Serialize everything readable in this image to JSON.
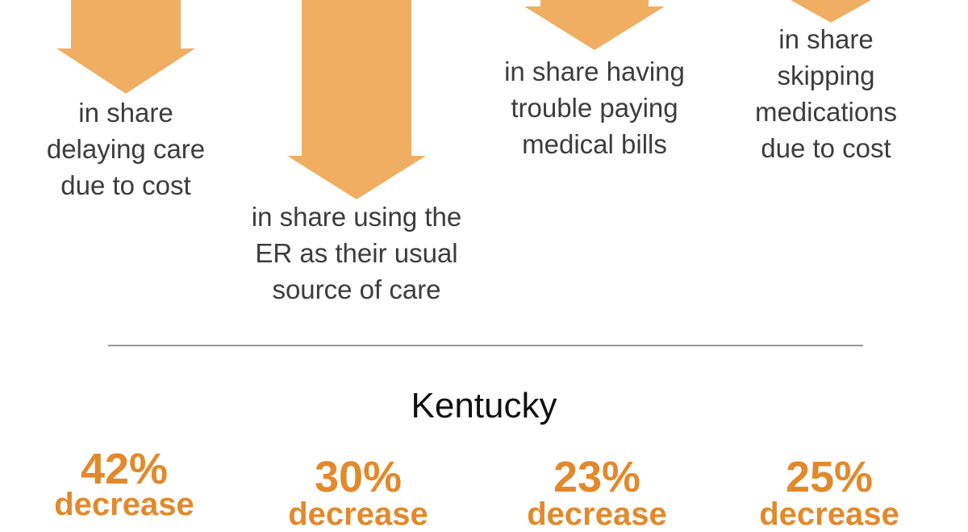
{
  "colors": {
    "arrow": "#f0ae62",
    "accent": "#e2892b",
    "text": "#3c3c3c",
    "divider": "#9a9a9a"
  },
  "top_items": [
    {
      "icon": "down-arrow-icon",
      "lines": [
        "in share",
        "delaying care",
        "due to cost"
      ]
    },
    {
      "icon": "down-arrow-icon",
      "lines": [
        "in share using the",
        "ER as their usual",
        "source of care"
      ]
    },
    {
      "icon": "down-arrow-icon",
      "lines": [
        "in share having",
        "trouble paying",
        "medical bills"
      ]
    },
    {
      "icon": "down-arrow-icon",
      "lines": [
        "in share",
        "skipping",
        "medications",
        "due to cost"
      ]
    }
  ],
  "state": {
    "name": "Kentucky",
    "stats": [
      {
        "value": "42%",
        "label": "decrease"
      },
      {
        "value": "30%",
        "label": "decrease"
      },
      {
        "value": "23%",
        "label": "decrease"
      },
      {
        "value": "25%",
        "label": "decrease"
      }
    ]
  }
}
